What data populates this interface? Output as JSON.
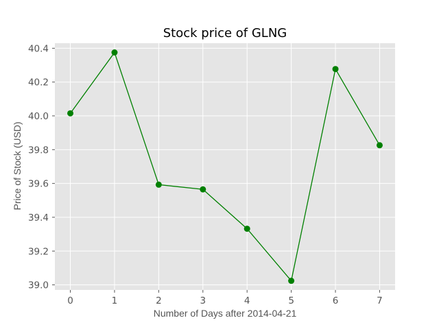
{
  "chart_data": {
    "type": "line",
    "title": "Stock price of GLNG",
    "xlabel": "Number of Days after 2014-04-21",
    "ylabel": "Price of Stock (USD)",
    "x": [
      0,
      1,
      2,
      3,
      4,
      5,
      6,
      7
    ],
    "series": [
      {
        "values": [
          40.015,
          40.375,
          39.593,
          39.565,
          39.332,
          39.024,
          40.277,
          39.826
        ],
        "color": "#008000",
        "marker": "circle"
      }
    ],
    "xlim": [
      -0.35,
      7.35
    ],
    "ylim": [
      38.97,
      40.43
    ],
    "xticks": [
      "0",
      "1",
      "2",
      "3",
      "4",
      "5",
      "6",
      "7"
    ],
    "yticks": [
      "39.0",
      "39.2",
      "39.4",
      "39.6",
      "39.8",
      "40.0",
      "40.2",
      "40.4"
    ],
    "grid": true,
    "style": {
      "background": "#e5e5e5",
      "grid_color": "#ffffff",
      "line_color": "#008000"
    }
  }
}
